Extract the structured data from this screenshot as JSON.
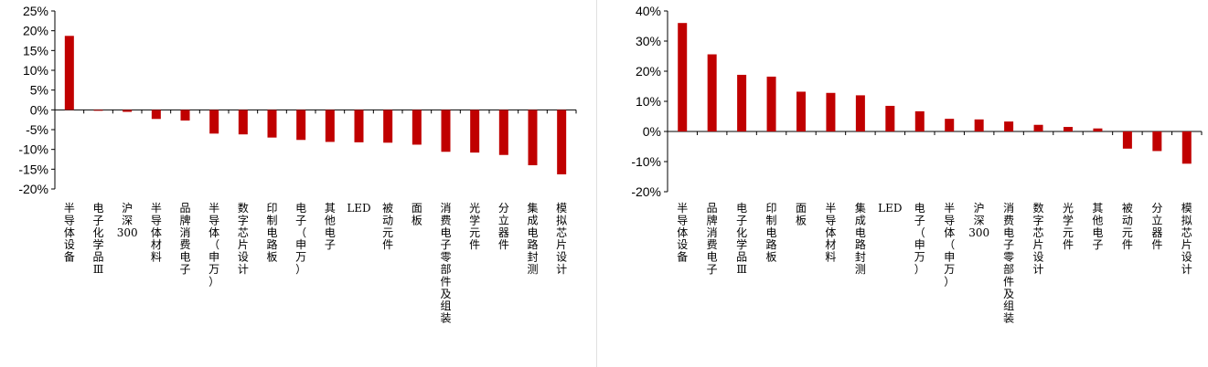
{
  "colors": {
    "bar": "#c00000",
    "axis": "#000000"
  },
  "chart_data": [
    {
      "type": "bar",
      "title": "",
      "xlabel": "",
      "ylabel": "",
      "ylim": [
        -20,
        25
      ],
      "yticks": [
        25,
        20,
        15,
        10,
        5,
        0,
        -5,
        -10,
        -15,
        -20
      ],
      "tick_format": "percent",
      "grid": false,
      "categories": [
        "半导体设备",
        "电子化学品Ⅲ",
        "沪深300",
        "半导体材料",
        "品牌消费电子",
        "半导体（申万）",
        "数字芯片设计",
        "印制电路板",
        "电子（申万）",
        "其他电子",
        "LED",
        "被动元件",
        "面板",
        "消费电子零部件及组装",
        "光学元件",
        "分立器件",
        "集成电路封测",
        "模拟芯片设计"
      ],
      "values": [
        18.7,
        -0.1,
        -0.5,
        -2.3,
        -2.7,
        -6.0,
        -6.2,
        -7.0,
        -7.6,
        -8.1,
        -8.2,
        -8.3,
        -8.8,
        -10.6,
        -10.8,
        -11.4,
        -14.0,
        -16.3
      ]
    },
    {
      "type": "bar",
      "title": "",
      "xlabel": "",
      "ylabel": "",
      "ylim": [
        -20,
        40
      ],
      "yticks": [
        40,
        30,
        20,
        10,
        0,
        -10,
        -20
      ],
      "tick_format": "percent",
      "grid": false,
      "categories": [
        "半导体设备",
        "品牌消费电子",
        "电子化学品Ⅲ",
        "印制电路板",
        "面板",
        "半导体材料",
        "集成电路封测",
        "LED",
        "电子（申万）",
        "半导体（申万）",
        "沪深300",
        "消费电子零部件及组装",
        "数字芯片设计",
        "光学元件",
        "其他电子",
        "被动元件",
        "分立器件",
        "模拟芯片设计"
      ],
      "values": [
        36.0,
        25.6,
        18.8,
        18.2,
        13.2,
        12.8,
        12.0,
        8.5,
        6.7,
        4.2,
        4.0,
        3.3,
        2.2,
        1.5,
        1.0,
        -5.7,
        -6.5,
        -10.7
      ]
    }
  ]
}
